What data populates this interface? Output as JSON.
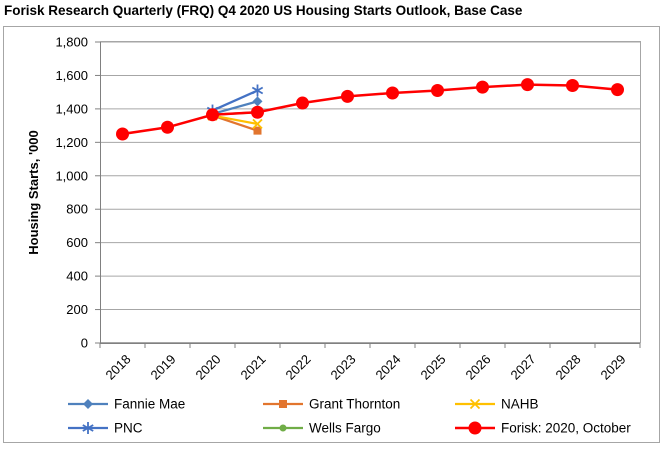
{
  "chart_data": {
    "type": "line",
    "title": "Forisk Research Quarterly (FRQ) Q4 2020 US Housing Starts Outlook, Base Case",
    "ylabel": "Housing Starts, '000",
    "xlabel": "",
    "categories": [
      "2018",
      "2019",
      "2020",
      "2021",
      "2022",
      "2023",
      "2024",
      "2025",
      "2026",
      "2027",
      "2028",
      "2029"
    ],
    "ylim": [
      0,
      1800
    ],
    "ytick_step": 200,
    "grid": "horizontal",
    "legend_position": "bottom",
    "colors": {
      "grid": "#A6A6A6",
      "axis": "#808080",
      "frame": "#A6A6A6",
      "text": "#000000"
    },
    "series": [
      {
        "name": "Fannie Mae",
        "color": "#4F81BD",
        "marker": "diamond",
        "x": [
          "2020",
          "2021"
        ],
        "values": [
          1370,
          1445
        ]
      },
      {
        "name": "Grant Thornton",
        "color": "#E2752E",
        "marker": "square",
        "x": [
          "2020",
          "2021"
        ],
        "values": [
          1360,
          1270
        ]
      },
      {
        "name": "NAHB",
        "color": "#FFC000",
        "marker": "x",
        "x": [
          "2020",
          "2021"
        ],
        "values": [
          1360,
          1310
        ]
      },
      {
        "name": "PNC",
        "color": "#4472C4",
        "marker": "asterisk",
        "x": [
          "2020",
          "2021"
        ],
        "values": [
          1390,
          1510
        ]
      },
      {
        "name": "Wells Fargo",
        "color": "#70AD47",
        "marker": "circle",
        "x": [
          "2020",
          "2021"
        ],
        "values": [
          1365,
          1380
        ]
      },
      {
        "name": "Forisk: 2020, October",
        "color": "#FF0000",
        "marker": "circle-large",
        "x": [
          "2018",
          "2019",
          "2020",
          "2021",
          "2022",
          "2023",
          "2024",
          "2025",
          "2026",
          "2027",
          "2028",
          "2029"
        ],
        "values": [
          1250,
          1290,
          1365,
          1380,
          1435,
          1475,
          1495,
          1510,
          1530,
          1545,
          1540,
          1515
        ]
      }
    ]
  }
}
